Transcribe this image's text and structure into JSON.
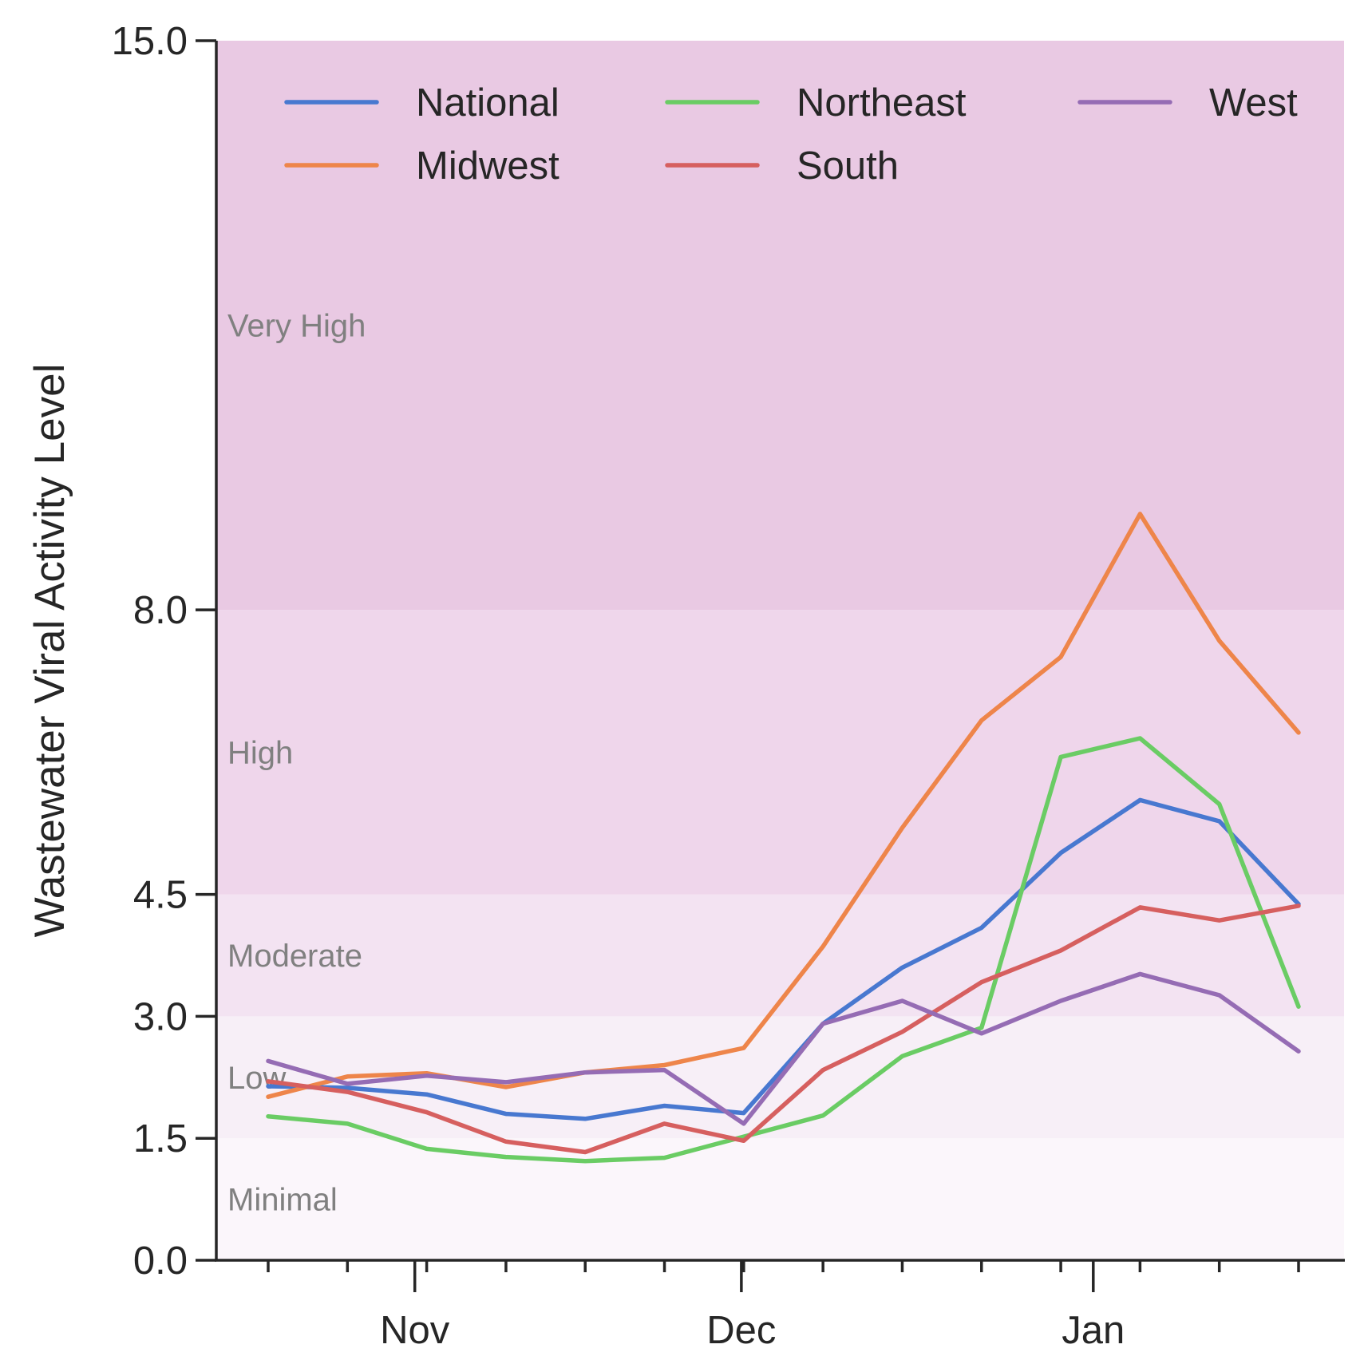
{
  "chart_data": {
    "type": "line",
    "title": "",
    "xlabel": "",
    "ylabel": "Wastewater Viral Activity Level",
    "ylim": [
      0,
      15
    ],
    "yticks": [
      0.0,
      1.5,
      3.0,
      4.5,
      8.0,
      15.0
    ],
    "ytick_labels": [
      "0.0",
      "1.5",
      "3.0",
      "4.5",
      "8.0",
      "15.0"
    ],
    "x_points": 14,
    "xtick_major_labels": [
      "Nov",
      "Dec",
      "Jan"
    ],
    "xtick_major_positions": [
      1.85,
      5.97,
      10.41
    ],
    "xtick_minor_positions": [
      0,
      1,
      2,
      3,
      4,
      5,
      6,
      7,
      8,
      9,
      10,
      11,
      12,
      13
    ],
    "grid": false,
    "legend": {
      "placement": "top",
      "columns": 3
    },
    "bands": [
      {
        "label": "Minimal",
        "from": 0.0,
        "to": 1.5,
        "color": "#fbf6fb"
      },
      {
        "label": "Low",
        "from": 1.5,
        "to": 3.0,
        "color": "#f7eff7"
      },
      {
        "label": "Moderate",
        "from": 3.0,
        "to": 4.5,
        "color": "#f3e3f2"
      },
      {
        "label": "High",
        "from": 4.5,
        "to": 8.0,
        "color": "#efd6eb"
      },
      {
        "label": "Very High",
        "from": 8.0,
        "to": 15.0,
        "color": "#e9c9e3"
      }
    ],
    "series": [
      {
        "name": "National",
        "color": "#4878d0",
        "values": [
          2.14,
          2.12,
          2.04,
          1.8,
          1.74,
          1.9,
          1.81,
          2.91,
          3.6,
          4.09,
          5.01,
          5.66,
          5.4,
          4.38
        ]
      },
      {
        "name": "Midwest",
        "color": "#ee854a",
        "values": [
          2.01,
          2.26,
          2.3,
          2.13,
          2.31,
          2.4,
          2.61,
          3.86,
          5.32,
          6.64,
          7.42,
          9.18,
          7.62,
          6.49
        ]
      },
      {
        "name": "Northeast",
        "color": "#6acc64",
        "values": [
          1.77,
          1.68,
          1.37,
          1.27,
          1.22,
          1.26,
          1.52,
          1.78,
          2.51,
          2.86,
          6.19,
          6.42,
          5.61,
          3.12
        ]
      },
      {
        "name": "South",
        "color": "#d65f5f",
        "values": [
          2.2,
          2.07,
          1.82,
          1.46,
          1.33,
          1.68,
          1.47,
          2.34,
          2.81,
          3.42,
          3.81,
          4.34,
          4.18,
          4.36
        ]
      },
      {
        "name": "West",
        "color": "#956cb4",
        "values": [
          2.45,
          2.17,
          2.27,
          2.19,
          2.31,
          2.34,
          1.68,
          2.91,
          3.19,
          2.79,
          3.19,
          3.52,
          3.26,
          2.57
        ]
      }
    ]
  }
}
